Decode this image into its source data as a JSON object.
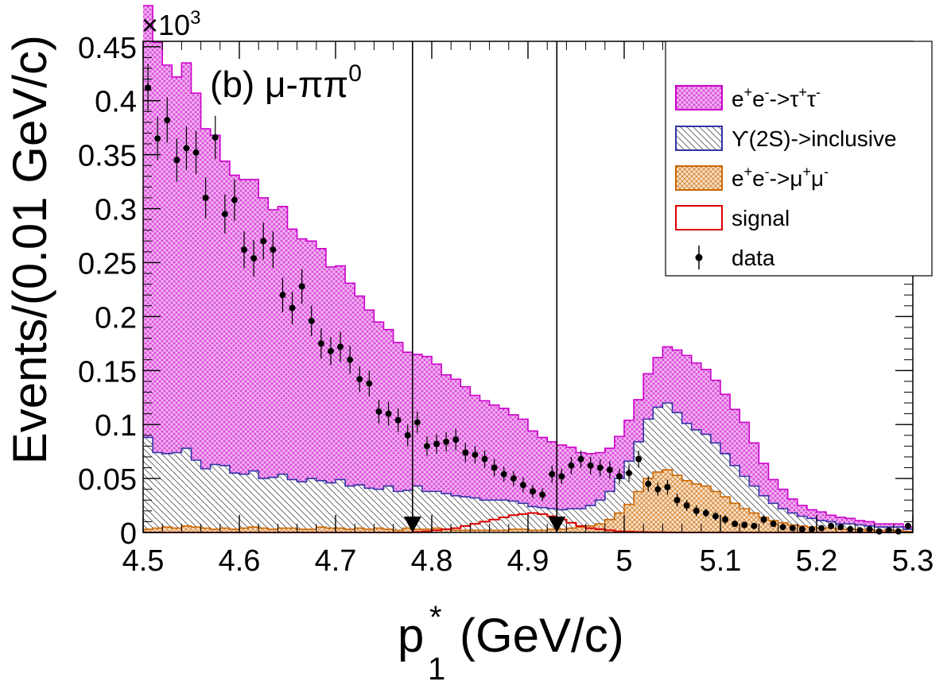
{
  "chart_data": {
    "type": "bar",
    "xlabel_main": "p",
    "xlabel_sub": "1",
    "xlabel_sup": "*",
    "xlabel_unit": "(GeV/c)",
    "ylabel": "Events/(0.01 GeV/c)",
    "y_exponent_label": "×10",
    "y_exponent_power": "3",
    "panel_label": "(b) μ-ππ",
    "panel_label_sup": "0",
    "xlim": [
      4.5,
      5.3
    ],
    "ylim": [
      0,
      0.455
    ],
    "x_ticks": [
      "4.5",
      "4.6",
      "4.7",
      "4.8",
      "4.9",
      "5",
      "5.1",
      "5.2",
      "5.3"
    ],
    "y_ticks": [
      "0",
      "0.05",
      "0.1",
      "0.15",
      "0.2",
      "0.25",
      "0.3",
      "0.35",
      "0.4",
      "0.45"
    ],
    "cut_lines": [
      4.78,
      4.93
    ],
    "bin_edges_start": 4.5,
    "bin_width": 0.01,
    "series": [
      {
        "key": "tautau",
        "legend": [
          "e",
          "+",
          "e",
          "-",
          "->",
          "τ",
          "+",
          "τ",
          "-"
        ],
        "color": "#cc00cc",
        "fill": "#dd44dd",
        "values": [
          0.4,
          0.38,
          0.36,
          0.348,
          0.357,
          0.34,
          0.315,
          0.305,
          0.282,
          0.276,
          0.273,
          0.27,
          0.26,
          0.248,
          0.248,
          0.232,
          0.225,
          0.22,
          0.215,
          0.2,
          0.198,
          0.188,
          0.175,
          0.165,
          0.155,
          0.145,
          0.138,
          0.128,
          0.122,
          0.125,
          0.118,
          0.11,
          0.108,
          0.102,
          0.095,
          0.092,
          0.088,
          0.085,
          0.08,
          0.078,
          0.07,
          0.065,
          0.062,
          0.06,
          0.057,
          0.052,
          0.048,
          0.044,
          0.04,
          0.039,
          0.038,
          0.039,
          0.042,
          0.046,
          0.052,
          0.058,
          0.063,
          0.062,
          0.06,
          0.058,
          0.055,
          0.052,
          0.05,
          0.04,
          0.03,
          0.022,
          0.018,
          0.013,
          0.01,
          0.008,
          0.008,
          0.006,
          0.006,
          0.005,
          0.004,
          0.004,
          0.003,
          0.003,
          0.003,
          0.002
        ]
      },
      {
        "key": "upsilon",
        "legend": [
          "ϒ(2S)->inclusive"
        ],
        "color": "#3333aa",
        "values": [
          0.085,
          0.07,
          0.068,
          0.07,
          0.072,
          0.062,
          0.055,
          0.06,
          0.058,
          0.052,
          0.05,
          0.052,
          0.046,
          0.048,
          0.05,
          0.045,
          0.044,
          0.047,
          0.043,
          0.042,
          0.045,
          0.04,
          0.04,
          0.038,
          0.036,
          0.04,
          0.036,
          0.035,
          0.04,
          0.035,
          0.034,
          0.033,
          0.032,
          0.031,
          0.03,
          0.028,
          0.028,
          0.028,
          0.026,
          0.024,
          0.022,
          0.021,
          0.019,
          0.018,
          0.018,
          0.017,
          0.019,
          0.022,
          0.026,
          0.032,
          0.04,
          0.046,
          0.055,
          0.06,
          0.062,
          0.058,
          0.053,
          0.05,
          0.048,
          0.045,
          0.04,
          0.035,
          0.03,
          0.025,
          0.02,
          0.016,
          0.013,
          0.011,
          0.009,
          0.008,
          0.007,
          0.006,
          0.005,
          0.005,
          0.004,
          0.004,
          0.003,
          0.003,
          0.003,
          0.002
        ]
      },
      {
        "key": "mumu",
        "legend": [
          "e",
          "+",
          "e",
          "-",
          "->",
          "μ",
          "+",
          "μ",
          "-"
        ],
        "color": "#cc6600",
        "fill": "#f0b070",
        "values": [
          0.003,
          0.004,
          0.005,
          0.004,
          0.006,
          0.005,
          0.004,
          0.003,
          0.004,
          0.003,
          0.004,
          0.005,
          0.004,
          0.003,
          0.004,
          0.004,
          0.003,
          0.003,
          0.005,
          0.004,
          0.004,
          0.003,
          0.004,
          0.003,
          0.004,
          0.003,
          0.002,
          0.004,
          0.003,
          0.003,
          0.004,
          0.003,
          0.002,
          0.002,
          0.002,
          0.002,
          0.002,
          0.002,
          0.003,
          0.003,
          0.002,
          0.002,
          0.003,
          0.003,
          0.004,
          0.005,
          0.006,
          0.008,
          0.012,
          0.018,
          0.026,
          0.038,
          0.05,
          0.056,
          0.058,
          0.053,
          0.048,
          0.045,
          0.043,
          0.038,
          0.033,
          0.027,
          0.022,
          0.018,
          0.014,
          0.011,
          0.009,
          0.007,
          0.006,
          0.005,
          0.004,
          0.004,
          0.003,
          0.003,
          0.003,
          0.002,
          0.002,
          0.002,
          0.002,
          0.001
        ]
      },
      {
        "key": "signal",
        "legend": [
          "signal"
        ],
        "color": "#dd0000",
        "values": [
          0.0,
          0.0,
          0.0,
          0.0,
          0.0,
          0.0,
          0.0,
          0.0,
          0.0,
          0.0,
          0.0,
          0.0,
          0.0,
          0.0,
          0.0,
          0.0,
          0.0,
          0.0,
          0.0,
          0.0,
          0.0,
          0.0,
          0.0,
          0.0,
          0.0,
          0.0,
          0.0,
          0.0,
          0.0005,
          0.001,
          0.002,
          0.003,
          0.004,
          0.006,
          0.008,
          0.01,
          0.012,
          0.014,
          0.016,
          0.017,
          0.018,
          0.017,
          0.015,
          0.012,
          0.009,
          0.006,
          0.004,
          0.003,
          0.002,
          0.001,
          0.0008,
          0.0005,
          0.0003,
          0.0002,
          0.0001,
          0.0,
          0.0,
          0.0,
          0.0,
          0.0,
          0.0,
          0.0,
          0.0,
          0.0,
          0.0,
          0.0,
          0.0,
          0.0,
          0.0,
          0.0,
          0.0,
          0.0,
          0.0,
          0.0,
          0.0,
          0.0,
          0.0,
          0.0,
          0.0,
          0.0
        ]
      }
    ],
    "data_points": {
      "legend": "data",
      "x": [
        4.505,
        4.515,
        4.525,
        4.535,
        4.545,
        4.555,
        4.565,
        4.575,
        4.585,
        4.595,
        4.605,
        4.615,
        4.625,
        4.635,
        4.645,
        4.655,
        4.665,
        4.675,
        4.685,
        4.695,
        4.705,
        4.715,
        4.725,
        4.735,
        4.745,
        4.755,
        4.765,
        4.775,
        4.785,
        4.795,
        4.805,
        4.815,
        4.825,
        4.835,
        4.845,
        4.855,
        4.865,
        4.875,
        4.885,
        4.895,
        4.905,
        4.915,
        4.925,
        4.935,
        4.945,
        4.955,
        4.965,
        4.975,
        4.985,
        4.995,
        5.005,
        5.015,
        5.025,
        5.035,
        5.045,
        5.055,
        5.065,
        5.075,
        5.085,
        5.095,
        5.105,
        5.115,
        5.125,
        5.135,
        5.145,
        5.155,
        5.165,
        5.175,
        5.185,
        5.195,
        5.205,
        5.215,
        5.225,
        5.235,
        5.245,
        5.255,
        5.265,
        5.275,
        5.285,
        5.295
      ],
      "y": [
        0.412,
        0.365,
        0.382,
        0.345,
        0.356,
        0.352,
        0.31,
        0.366,
        0.295,
        0.308,
        0.262,
        0.254,
        0.27,
        0.262,
        0.22,
        0.208,
        0.228,
        0.196,
        0.175,
        0.168,
        0.172,
        0.16,
        0.142,
        0.138,
        0.112,
        0.11,
        0.104,
        0.09,
        0.102,
        0.08,
        0.082,
        0.084,
        0.086,
        0.074,
        0.072,
        0.068,
        0.06,
        0.054,
        0.05,
        0.044,
        0.038,
        0.035,
        0.054,
        0.052,
        0.062,
        0.068,
        0.062,
        0.06,
        0.058,
        0.052,
        0.055,
        0.068,
        0.045,
        0.04,
        0.042,
        0.03,
        0.025,
        0.02,
        0.018,
        0.015,
        0.012,
        0.008,
        0.007,
        0.006,
        0.012,
        0.008,
        0.005,
        0.004,
        0.003,
        0.003,
        0.004,
        0.006,
        0.005,
        0.003,
        0.002,
        0.003,
        0.001,
        0.002,
        0.001,
        0.006
      ],
      "err": [
        0.022,
        0.02,
        0.021,
        0.02,
        0.02,
        0.02,
        0.019,
        0.02,
        0.018,
        0.019,
        0.017,
        0.017,
        0.017,
        0.017,
        0.016,
        0.015,
        0.016,
        0.014,
        0.014,
        0.013,
        0.014,
        0.013,
        0.012,
        0.012,
        0.011,
        0.011,
        0.011,
        0.01,
        0.01,
        0.009,
        0.009,
        0.009,
        0.01,
        0.009,
        0.008,
        0.008,
        0.008,
        0.007,
        0.007,
        0.007,
        0.006,
        0.006,
        0.008,
        0.007,
        0.008,
        0.008,
        0.008,
        0.008,
        0.008,
        0.007,
        0.008,
        0.008,
        0.007,
        0.006,
        0.007,
        0.006,
        0.005,
        0.005,
        0.004,
        0.004,
        0.004,
        0.003,
        0.003,
        0.003,
        0.004,
        0.003,
        0.003,
        0.002,
        0.002,
        0.002,
        0.002,
        0.003,
        0.002,
        0.002,
        0.002,
        0.002,
        0.001,
        0.002,
        0.001,
        0.003
      ]
    }
  }
}
